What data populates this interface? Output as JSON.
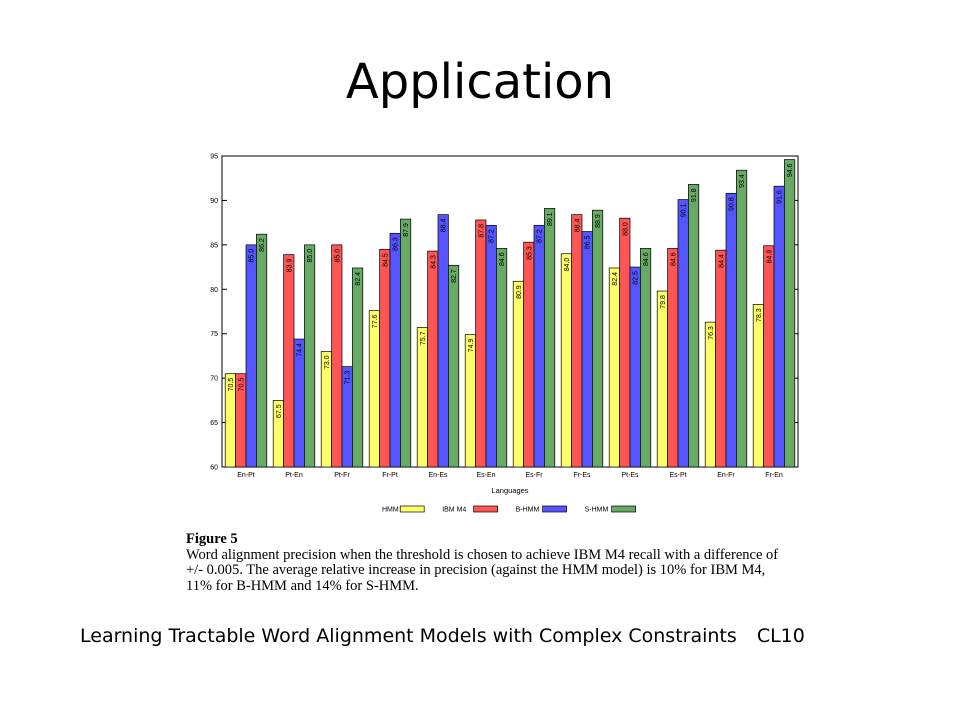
{
  "slide": {
    "title": "Application",
    "footer_text": "Learning Tractable Word Alignment Models with Complex Constraints",
    "footer_tag": "CL10"
  },
  "caption": {
    "label": "Figure 5",
    "text": "Word alignment precision when the threshold is chosen to achieve IBM M4 recall with a difference of +/- 0.005. The average relative increase in precision (against the HMM model) is 10% for IBM M4, 11% for B-HMM and 14% for S-HMM."
  },
  "chart_data": {
    "type": "bar",
    "title": "",
    "xlabel": "Languages",
    "ylabel": "",
    "ylim": [
      60,
      95
    ],
    "yticks": [
      60,
      65,
      70,
      75,
      80,
      85,
      90,
      95
    ],
    "grid": false,
    "legend_position": "bottom",
    "categories": [
      "En-Pt",
      "Pt-En",
      "Pt-Fr",
      "Fr-Pt",
      "En-Es",
      "Es-En",
      "Es-Fr",
      "Fr-Es",
      "Pt-Es",
      "Es-Pt",
      "En-Fr",
      "Fr-En"
    ],
    "series": [
      {
        "name": "HMM",
        "color": "#ffff66",
        "values": [
          70.5,
          67.5,
          73.0,
          77.6,
          75.7,
          74.9,
          80.9,
          84.0,
          82.4,
          79.8,
          76.3,
          78.3
        ]
      },
      {
        "name": "IBM M4",
        "color": "#ff5555",
        "values": [
          70.5,
          83.9,
          85.0,
          84.5,
          84.3,
          87.8,
          85.3,
          88.4,
          88.0,
          84.6,
          84.4,
          84.9
        ]
      },
      {
        "name": "B-HMM",
        "color": "#5555ff",
        "values": [
          85.0,
          74.4,
          71.3,
          86.3,
          88.4,
          87.2,
          87.2,
          86.5,
          82.5,
          90.1,
          90.8,
          91.6
        ]
      },
      {
        "name": "S-HMM",
        "color": "#66aa66",
        "values": [
          86.2,
          85.0,
          82.4,
          87.9,
          82.7,
          84.6,
          89.1,
          88.9,
          84.6,
          91.8,
          93.4,
          94.6
        ]
      }
    ]
  }
}
